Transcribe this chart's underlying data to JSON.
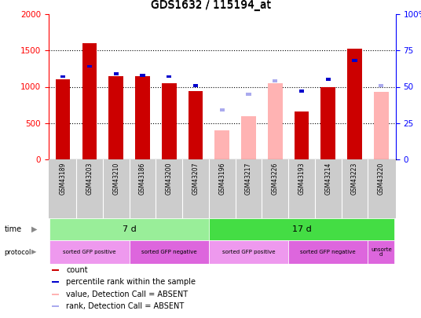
{
  "title": "GDS1632 / 115194_at",
  "samples": [
    "GSM43189",
    "GSM43203",
    "GSM43210",
    "GSM43186",
    "GSM43200",
    "GSM43207",
    "GSM43196",
    "GSM43217",
    "GSM43226",
    "GSM43193",
    "GSM43214",
    "GSM43223",
    "GSM43220"
  ],
  "count_values": [
    1100,
    1600,
    1150,
    1150,
    1050,
    940,
    null,
    null,
    null,
    660,
    1000,
    1520,
    null
  ],
  "count_absent": [
    null,
    null,
    null,
    null,
    null,
    null,
    400,
    600,
    1050,
    null,
    null,
    null,
    930
  ],
  "rank_values": [
    57,
    64,
    59,
    58,
    57,
    51,
    null,
    null,
    null,
    47,
    55,
    68,
    null
  ],
  "rank_absent": [
    null,
    null,
    null,
    null,
    null,
    null,
    34,
    45,
    54,
    null,
    null,
    null,
    51
  ],
  "ylim_left": [
    0,
    2000
  ],
  "ylim_right": [
    0,
    100
  ],
  "yticks_left": [
    0,
    500,
    1000,
    1500,
    2000
  ],
  "yticks_right": [
    0,
    25,
    50,
    75,
    100
  ],
  "ytick_labels_right": [
    "0",
    "25",
    "50",
    "75",
    "100%"
  ],
  "bar_color_present": "#cc0000",
  "bar_color_absent": "#ffb3b3",
  "rank_color_present": "#0000cc",
  "rank_color_absent": "#aaaaee",
  "bg_color": "#ffffff",
  "time_groups": [
    {
      "label": "7 d",
      "start": 0,
      "end": 5,
      "color": "#99ee99"
    },
    {
      "label": "17 d",
      "start": 6,
      "end": 12,
      "color": "#44dd44"
    }
  ],
  "protocol_groups": [
    {
      "label": "sorted GFP positive",
      "start": 0,
      "end": 2,
      "color": "#ee99ee"
    },
    {
      "label": "sorted GFP negative",
      "start": 3,
      "end": 5,
      "color": "#dd66dd"
    },
    {
      "label": "sorted GFP positive",
      "start": 6,
      "end": 8,
      "color": "#ee99ee"
    },
    {
      "label": "sorted GFP negative",
      "start": 9,
      "end": 11,
      "color": "#dd66dd"
    },
    {
      "label": "unsorte\nd",
      "start": 12,
      "end": 12,
      "color": "#dd66dd"
    }
  ],
  "legend_items": [
    {
      "label": "count",
      "color": "#cc0000"
    },
    {
      "label": "percentile rank within the sample",
      "color": "#0000cc"
    },
    {
      "label": "value, Detection Call = ABSENT",
      "color": "#ffb3b3"
    },
    {
      "label": "rank, Detection Call = ABSENT",
      "color": "#aaaaee"
    }
  ]
}
